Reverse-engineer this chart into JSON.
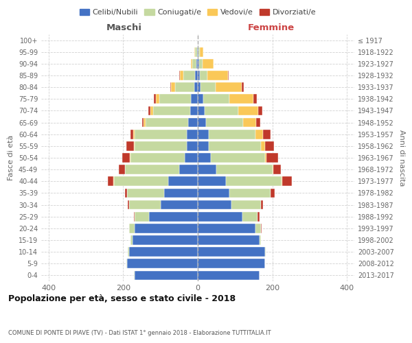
{
  "age_groups": [
    "0-4",
    "5-9",
    "10-14",
    "15-19",
    "20-24",
    "25-29",
    "30-34",
    "35-39",
    "40-44",
    "45-49",
    "50-54",
    "55-59",
    "60-64",
    "65-69",
    "70-74",
    "75-79",
    "80-84",
    "85-89",
    "90-94",
    "95-99",
    "100+"
  ],
  "birth_years": [
    "2013-2017",
    "2008-2012",
    "2003-2007",
    "1998-2002",
    "1993-1997",
    "1988-1992",
    "1983-1987",
    "1978-1982",
    "1973-1977",
    "1968-1972",
    "1963-1967",
    "1958-1962",
    "1953-1957",
    "1948-1952",
    "1943-1947",
    "1938-1942",
    "1933-1937",
    "1928-1932",
    "1923-1927",
    "1918-1922",
    "≤ 1917"
  ],
  "maschi_celibi": [
    170,
    190,
    185,
    175,
    170,
    130,
    100,
    90,
    80,
    50,
    35,
    30,
    30,
    25,
    20,
    18,
    10,
    8,
    4,
    2,
    0
  ],
  "maschi_coniugati": [
    1,
    1,
    2,
    5,
    15,
    40,
    85,
    100,
    145,
    145,
    145,
    140,
    140,
    115,
    100,
    85,
    50,
    30,
    10,
    5,
    0
  ],
  "maschi_vedovi": [
    0,
    0,
    0,
    0,
    0,
    0,
    0,
    0,
    1,
    1,
    2,
    2,
    3,
    5,
    8,
    10,
    12,
    10,
    5,
    2,
    0
  ],
  "maschi_divorziati": [
    0,
    0,
    0,
    0,
    0,
    1,
    2,
    5,
    15,
    15,
    20,
    20,
    8,
    5,
    5,
    4,
    2,
    1,
    0,
    0,
    0
  ],
  "femmine_celibi": [
    165,
    180,
    180,
    165,
    155,
    120,
    90,
    85,
    75,
    50,
    35,
    30,
    30,
    22,
    18,
    15,
    8,
    6,
    4,
    2,
    0
  ],
  "femmine_coniugati": [
    1,
    1,
    2,
    5,
    15,
    40,
    80,
    110,
    150,
    150,
    145,
    140,
    125,
    100,
    90,
    70,
    40,
    20,
    8,
    3,
    0
  ],
  "femmine_vedovi": [
    0,
    0,
    0,
    0,
    0,
    0,
    0,
    1,
    2,
    3,
    5,
    10,
    20,
    35,
    55,
    65,
    70,
    55,
    30,
    10,
    0
  ],
  "femmine_divorziati": [
    0,
    0,
    0,
    0,
    2,
    5,
    5,
    10,
    25,
    20,
    30,
    25,
    20,
    10,
    10,
    8,
    5,
    2,
    0,
    0,
    0
  ],
  "colors": {
    "celibi": "#4472C4",
    "coniugati": "#C5D9A0",
    "vedovi": "#FAC858",
    "divorziati": "#C0392B"
  },
  "xlim": 420,
  "title": "Popolazione per età, sesso e stato civile - 2018",
  "subtitle": "COMUNE DI PONTE DI PIAVE (TV) - Dati ISTAT 1° gennaio 2018 - Elaborazione TUTTITALIA.IT",
  "ylabel": "Fasce di età",
  "ylabel2": "Anni di nascita",
  "maschi_label": "Maschi",
  "femmine_label": "Femmine",
  "legend_labels": [
    "Celibi/Nubili",
    "Coniugati/e",
    "Vedovi/e",
    "Divorziati/e"
  ],
  "background_color": "#ffffff",
  "grid_color": "#cccccc"
}
